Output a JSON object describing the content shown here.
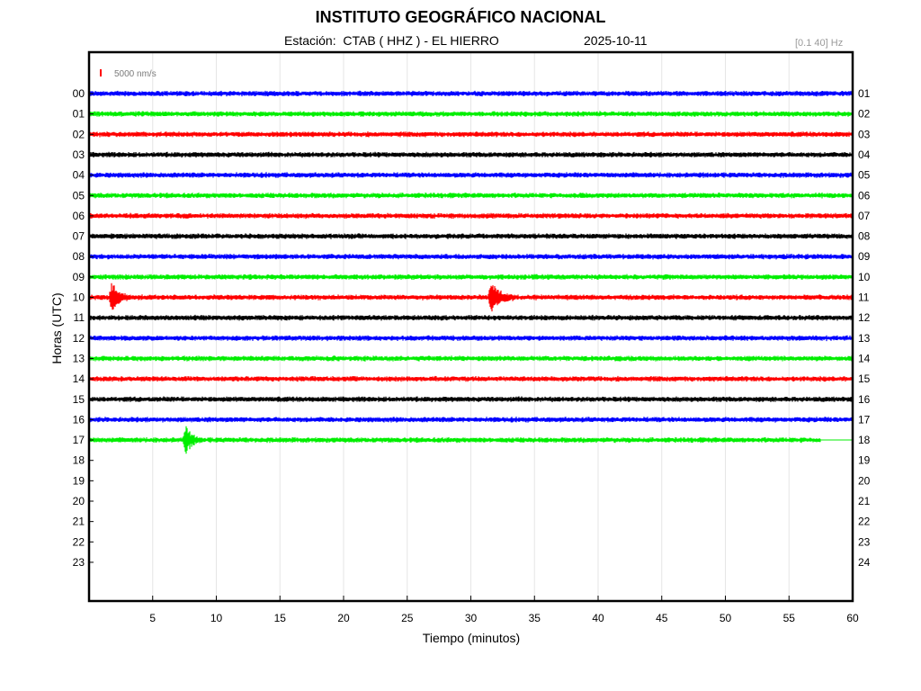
{
  "header": {
    "title": "INSTITUTO GEOGRÁFICO NACIONAL",
    "station": "Estación:  CTAB ( HHZ ) - EL HIERRO",
    "date": "2025-10-11",
    "filter": "[0.1 40] Hz"
  },
  "chart_data": {
    "type": "line",
    "title": "INSTITUTO GEOGRÁFICO NACIONAL",
    "xlabel": "Tiempo (minutos)",
    "ylabel": "Horas (UTC)",
    "xlim": [
      0,
      60
    ],
    "x_ticks": [
      "5",
      "10",
      "15",
      "20",
      "25",
      "30",
      "35",
      "40",
      "45",
      "50",
      "55",
      "60"
    ],
    "left_hour_labels": [
      "00",
      "01",
      "02",
      "03",
      "04",
      "05",
      "06",
      "07",
      "08",
      "09",
      "10",
      "11",
      "12",
      "13",
      "14",
      "15",
      "16",
      "17",
      "18",
      "19",
      "20",
      "21",
      "22",
      "23"
    ],
    "right_hour_labels": [
      "01",
      "02",
      "03",
      "04",
      "05",
      "06",
      "07",
      "08",
      "09",
      "10",
      "11",
      "12",
      "13",
      "14",
      "15",
      "16",
      "17",
      "18",
      "19",
      "20",
      "21",
      "22",
      "23",
      "24"
    ],
    "scale_label": "5000 nm/s",
    "grid": true,
    "color_cycle": [
      "#0000ff",
      "#00ee00",
      "#ff0000",
      "#000000"
    ],
    "series": [
      {
        "hour": 0,
        "end_minute": 60
      },
      {
        "hour": 1,
        "end_minute": 60
      },
      {
        "hour": 2,
        "end_minute": 60
      },
      {
        "hour": 3,
        "end_minute": 60
      },
      {
        "hour": 4,
        "end_minute": 60
      },
      {
        "hour": 5,
        "end_minute": 60
      },
      {
        "hour": 6,
        "end_minute": 60
      },
      {
        "hour": 7,
        "end_minute": 60
      },
      {
        "hour": 8,
        "end_minute": 60
      },
      {
        "hour": 9,
        "end_minute": 60
      },
      {
        "hour": 10,
        "end_minute": 60
      },
      {
        "hour": 11,
        "end_minute": 60
      },
      {
        "hour": 12,
        "end_minute": 60
      },
      {
        "hour": 13,
        "end_minute": 60
      },
      {
        "hour": 14,
        "end_minute": 60
      },
      {
        "hour": 15,
        "end_minute": 60
      },
      {
        "hour": 16,
        "end_minute": 60
      },
      {
        "hour": 17,
        "end_minute": 57.5
      }
    ],
    "events": [
      {
        "hour": 10,
        "minute": 1.8,
        "duration_min": 1.5
      },
      {
        "hour": 10,
        "minute": 31.6,
        "duration_min": 1.8
      },
      {
        "hour": 17,
        "minute": 7.6,
        "duration_min": 1.2
      }
    ]
  }
}
